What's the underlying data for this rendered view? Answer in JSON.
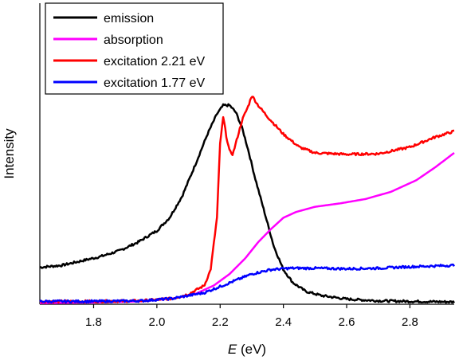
{
  "chart_data": {
    "type": "line",
    "xlabel_italic": "E",
    "xlabel_rest": " (eV)",
    "ylabel": "Intensity",
    "xlim": [
      1.63,
      2.94
    ],
    "ylim": [
      0,
      1
    ],
    "xticks": [
      "1.8",
      "2.0",
      "2.2",
      "2.4",
      "2.6",
      "2.8"
    ],
    "xtick_values": [
      1.8,
      2.0,
      2.2,
      2.4,
      2.6,
      2.8
    ],
    "legend_position": "top-left",
    "series": [
      {
        "name": "emission",
        "color": "#000000",
        "noise": 0.004,
        "points": [
          [
            1.63,
            0.128
          ],
          [
            1.7,
            0.135
          ],
          [
            1.76,
            0.15
          ],
          [
            1.82,
            0.165
          ],
          [
            1.88,
            0.185
          ],
          [
            1.94,
            0.215
          ],
          [
            2.0,
            0.255
          ],
          [
            2.04,
            0.3
          ],
          [
            2.08,
            0.375
          ],
          [
            2.12,
            0.48
          ],
          [
            2.16,
            0.59
          ],
          [
            2.19,
            0.66
          ],
          [
            2.21,
            0.69
          ],
          [
            2.23,
            0.69
          ],
          [
            2.25,
            0.665
          ],
          [
            2.27,
            0.61
          ],
          [
            2.29,
            0.53
          ],
          [
            2.31,
            0.44
          ],
          [
            2.34,
            0.32
          ],
          [
            2.37,
            0.2
          ],
          [
            2.4,
            0.12
          ],
          [
            2.43,
            0.075
          ],
          [
            2.47,
            0.045
          ],
          [
            2.52,
            0.03
          ],
          [
            2.6,
            0.018
          ],
          [
            2.7,
            0.012
          ],
          [
            2.8,
            0.01
          ],
          [
            2.94,
            0.008
          ]
        ]
      },
      {
        "name": "absorption",
        "color": "#ff00ff",
        "noise": 0.0,
        "points": [
          [
            1.63,
            0.004
          ],
          [
            1.8,
            0.006
          ],
          [
            1.95,
            0.01
          ],
          [
            2.05,
            0.02
          ],
          [
            2.12,
            0.035
          ],
          [
            2.18,
            0.065
          ],
          [
            2.23,
            0.105
          ],
          [
            2.28,
            0.16
          ],
          [
            2.32,
            0.215
          ],
          [
            2.36,
            0.26
          ],
          [
            2.4,
            0.3
          ],
          [
            2.44,
            0.32
          ],
          [
            2.5,
            0.338
          ],
          [
            2.58,
            0.35
          ],
          [
            2.66,
            0.365
          ],
          [
            2.74,
            0.39
          ],
          [
            2.82,
            0.43
          ],
          [
            2.88,
            0.475
          ],
          [
            2.94,
            0.525
          ]
        ]
      },
      {
        "name": "excitation 2.21 eV",
        "color": "#ff0000",
        "noise": 0.004,
        "points": [
          [
            1.63,
            0.01
          ],
          [
            1.8,
            0.01
          ],
          [
            1.95,
            0.012
          ],
          [
            2.05,
            0.02
          ],
          [
            2.1,
            0.035
          ],
          [
            2.15,
            0.065
          ],
          [
            2.17,
            0.12
          ],
          [
            2.19,
            0.3
          ],
          [
            2.2,
            0.56
          ],
          [
            2.21,
            0.65
          ],
          [
            2.22,
            0.58
          ],
          [
            2.23,
            0.53
          ],
          [
            2.24,
            0.52
          ],
          [
            2.25,
            0.56
          ],
          [
            2.27,
            0.64
          ],
          [
            2.29,
            0.69
          ],
          [
            2.3,
            0.725
          ],
          [
            2.32,
            0.69
          ],
          [
            2.35,
            0.65
          ],
          [
            2.4,
            0.59
          ],
          [
            2.45,
            0.545
          ],
          [
            2.5,
            0.525
          ],
          [
            2.6,
            0.52
          ],
          [
            2.7,
            0.522
          ],
          [
            2.8,
            0.545
          ],
          [
            2.88,
            0.58
          ],
          [
            2.94,
            0.6
          ]
        ]
      },
      {
        "name": "excitation 1.77 eV",
        "color": "#0000ff",
        "noise": 0.004,
        "points": [
          [
            1.63,
            0.01
          ],
          [
            1.8,
            0.01
          ],
          [
            1.95,
            0.012
          ],
          [
            2.05,
            0.02
          ],
          [
            2.15,
            0.04
          ],
          [
            2.22,
            0.07
          ],
          [
            2.3,
            0.105
          ],
          [
            2.36,
            0.12
          ],
          [
            2.42,
            0.125
          ],
          [
            2.5,
            0.125
          ],
          [
            2.6,
            0.123
          ],
          [
            2.7,
            0.125
          ],
          [
            2.8,
            0.13
          ],
          [
            2.94,
            0.135
          ]
        ]
      }
    ]
  }
}
